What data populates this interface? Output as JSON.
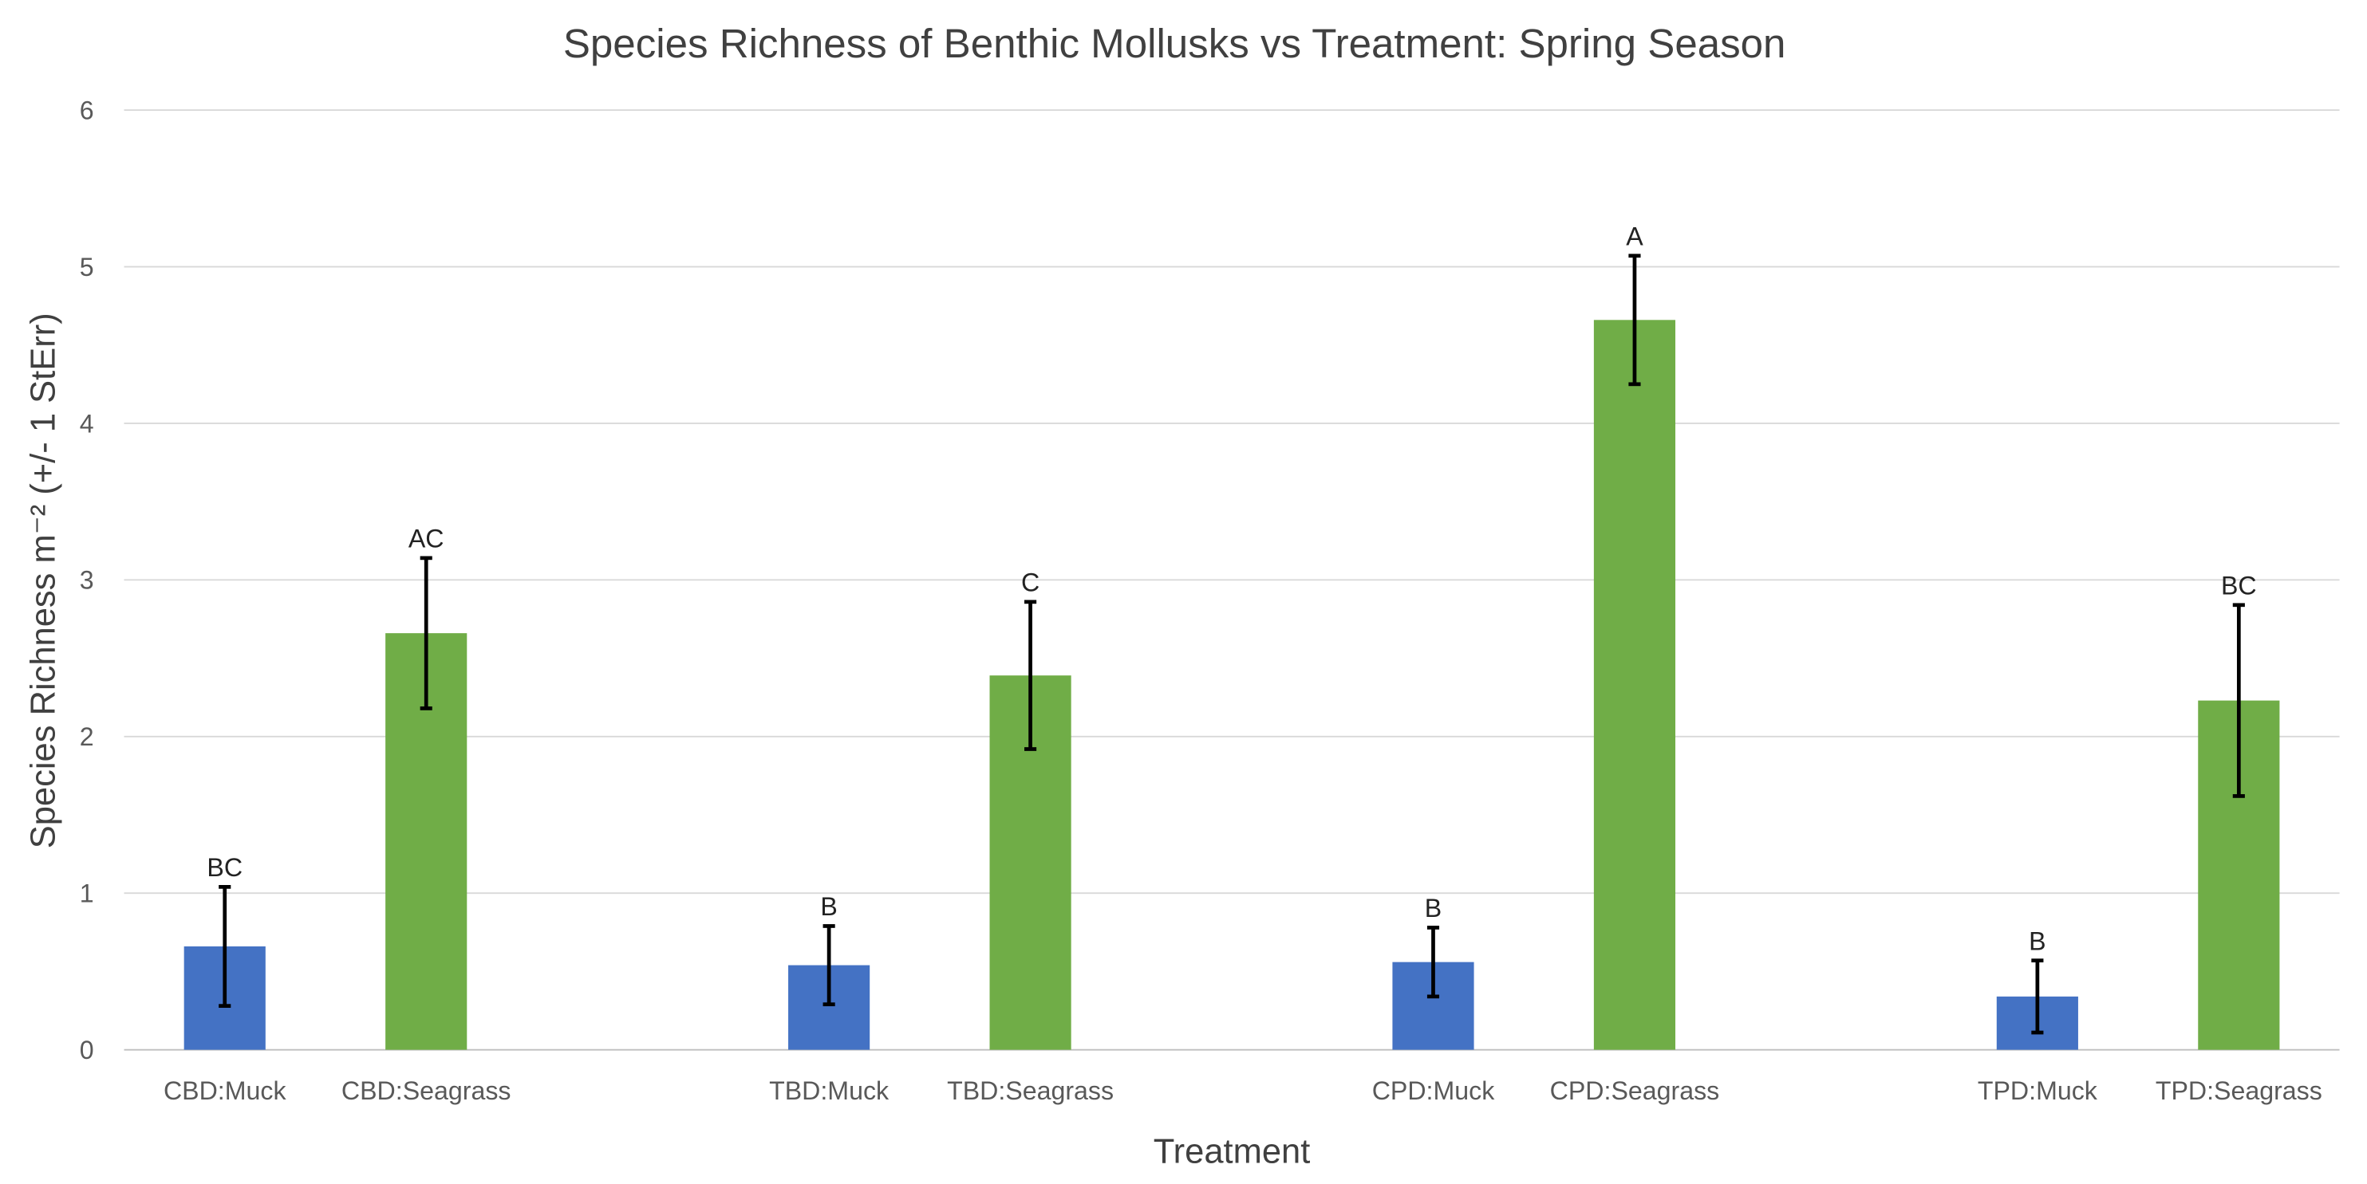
{
  "chart_data": {
    "type": "bar",
    "title": "Species Richness of Benthic Mollusks vs Treatment: Spring Season",
    "xlabel": "Treatment",
    "ylabel": "Species Richness m⁻² (+/- 1 StErr)",
    "ylim": [
      0,
      6
    ],
    "yticks": [
      "0",
      "1",
      "2",
      "3",
      "4",
      "5",
      "6"
    ],
    "grid": true,
    "legend": "none",
    "categories": [
      "CBD:Muck",
      "CBD:Seagrass",
      "TBD:Muck",
      "TBD:Seagrass",
      "CPD:Muck",
      "CPD:Seagrass",
      "TPD:Muck",
      "TPD:Seagrass"
    ],
    "values": [
      0.66,
      2.66,
      0.54,
      2.39,
      0.56,
      4.66,
      0.34,
      2.23
    ],
    "errors": [
      0.38,
      0.48,
      0.25,
      0.47,
      0.22,
      0.41,
      0.23,
      0.61
    ],
    "letters": [
      "BC",
      "AC",
      "B",
      "C",
      "B",
      "A",
      "B",
      "BC"
    ],
    "colors": {
      "Muck": "#4472C4",
      "Seagrass": "#70AD47"
    }
  }
}
